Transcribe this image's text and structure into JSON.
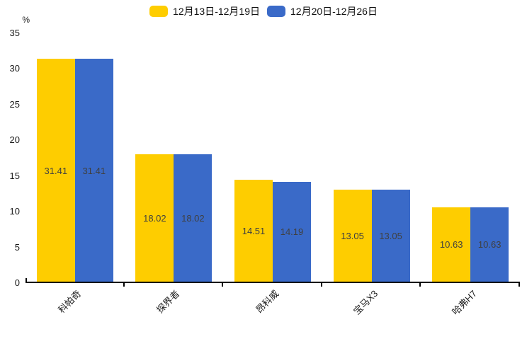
{
  "chart_data": {
    "type": "bar",
    "title": "",
    "unit_label": "%",
    "categories": [
      "科帕奇",
      "探界者",
      "昂科威",
      "宝马X3",
      "哈弗H7"
    ],
    "series": [
      {
        "name": "12月13日-12月19日",
        "color": "#FECD00",
        "values": [
          31.41,
          18.02,
          14.51,
          13.05,
          10.63
        ]
      },
      {
        "name": "12月20日-12月26日",
        "color": "#3A6AC8",
        "values": [
          31.41,
          18.02,
          14.19,
          13.05,
          10.63
        ]
      }
    ],
    "ylim": [
      0,
      35
    ],
    "yticks": [
      0,
      5,
      10,
      15,
      20,
      25,
      30,
      35
    ],
    "grid": false,
    "legend_position": "top",
    "value_labels": true,
    "x_label_rotation": 45
  },
  "colors": {
    "background": "#ffffff",
    "axis": "#000000",
    "value_label": "#404040",
    "tick_label": "#1a1a1a"
  }
}
